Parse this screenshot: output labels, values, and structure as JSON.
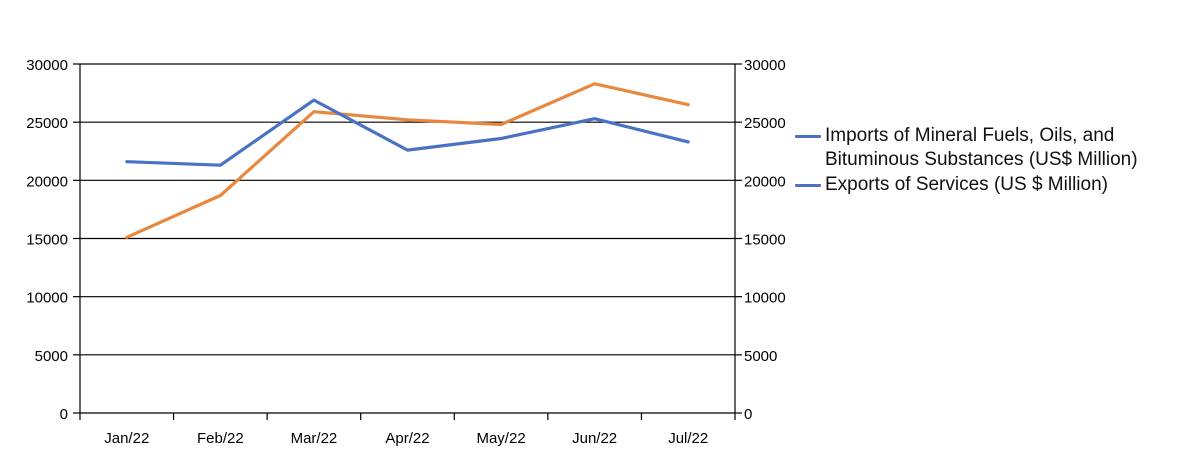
{
  "chart_data": {
    "type": "line",
    "categories": [
      "Jan/22",
      "Feb/22",
      "Mar/22",
      "Apr/22",
      "May/22",
      "Jun/22",
      "Jul/22"
    ],
    "series": [
      {
        "name": "Imports of Mineral Fuels, Oils, and Bituminous Substances (US$ Million)",
        "color": "#E8883F",
        "values": [
          15100,
          18700,
          25900,
          25200,
          24800,
          28300,
          26500
        ]
      },
      {
        "name": "Exports of Services (US $ Million)",
        "color": "#4A72C4",
        "values": [
          21600,
          21300,
          26900,
          22600,
          23600,
          25300,
          23300
        ]
      }
    ],
    "ylim": [
      0,
      30000
    ],
    "y_ticks": [
      "0",
      "5000",
      "10000",
      "15000",
      "20000",
      "25000",
      "30000"
    ],
    "y2_ticks": [
      "0",
      "5000",
      "10000",
      "15000",
      "20000",
      "25000",
      "30000"
    ],
    "grid": true,
    "legend_position": "right"
  }
}
